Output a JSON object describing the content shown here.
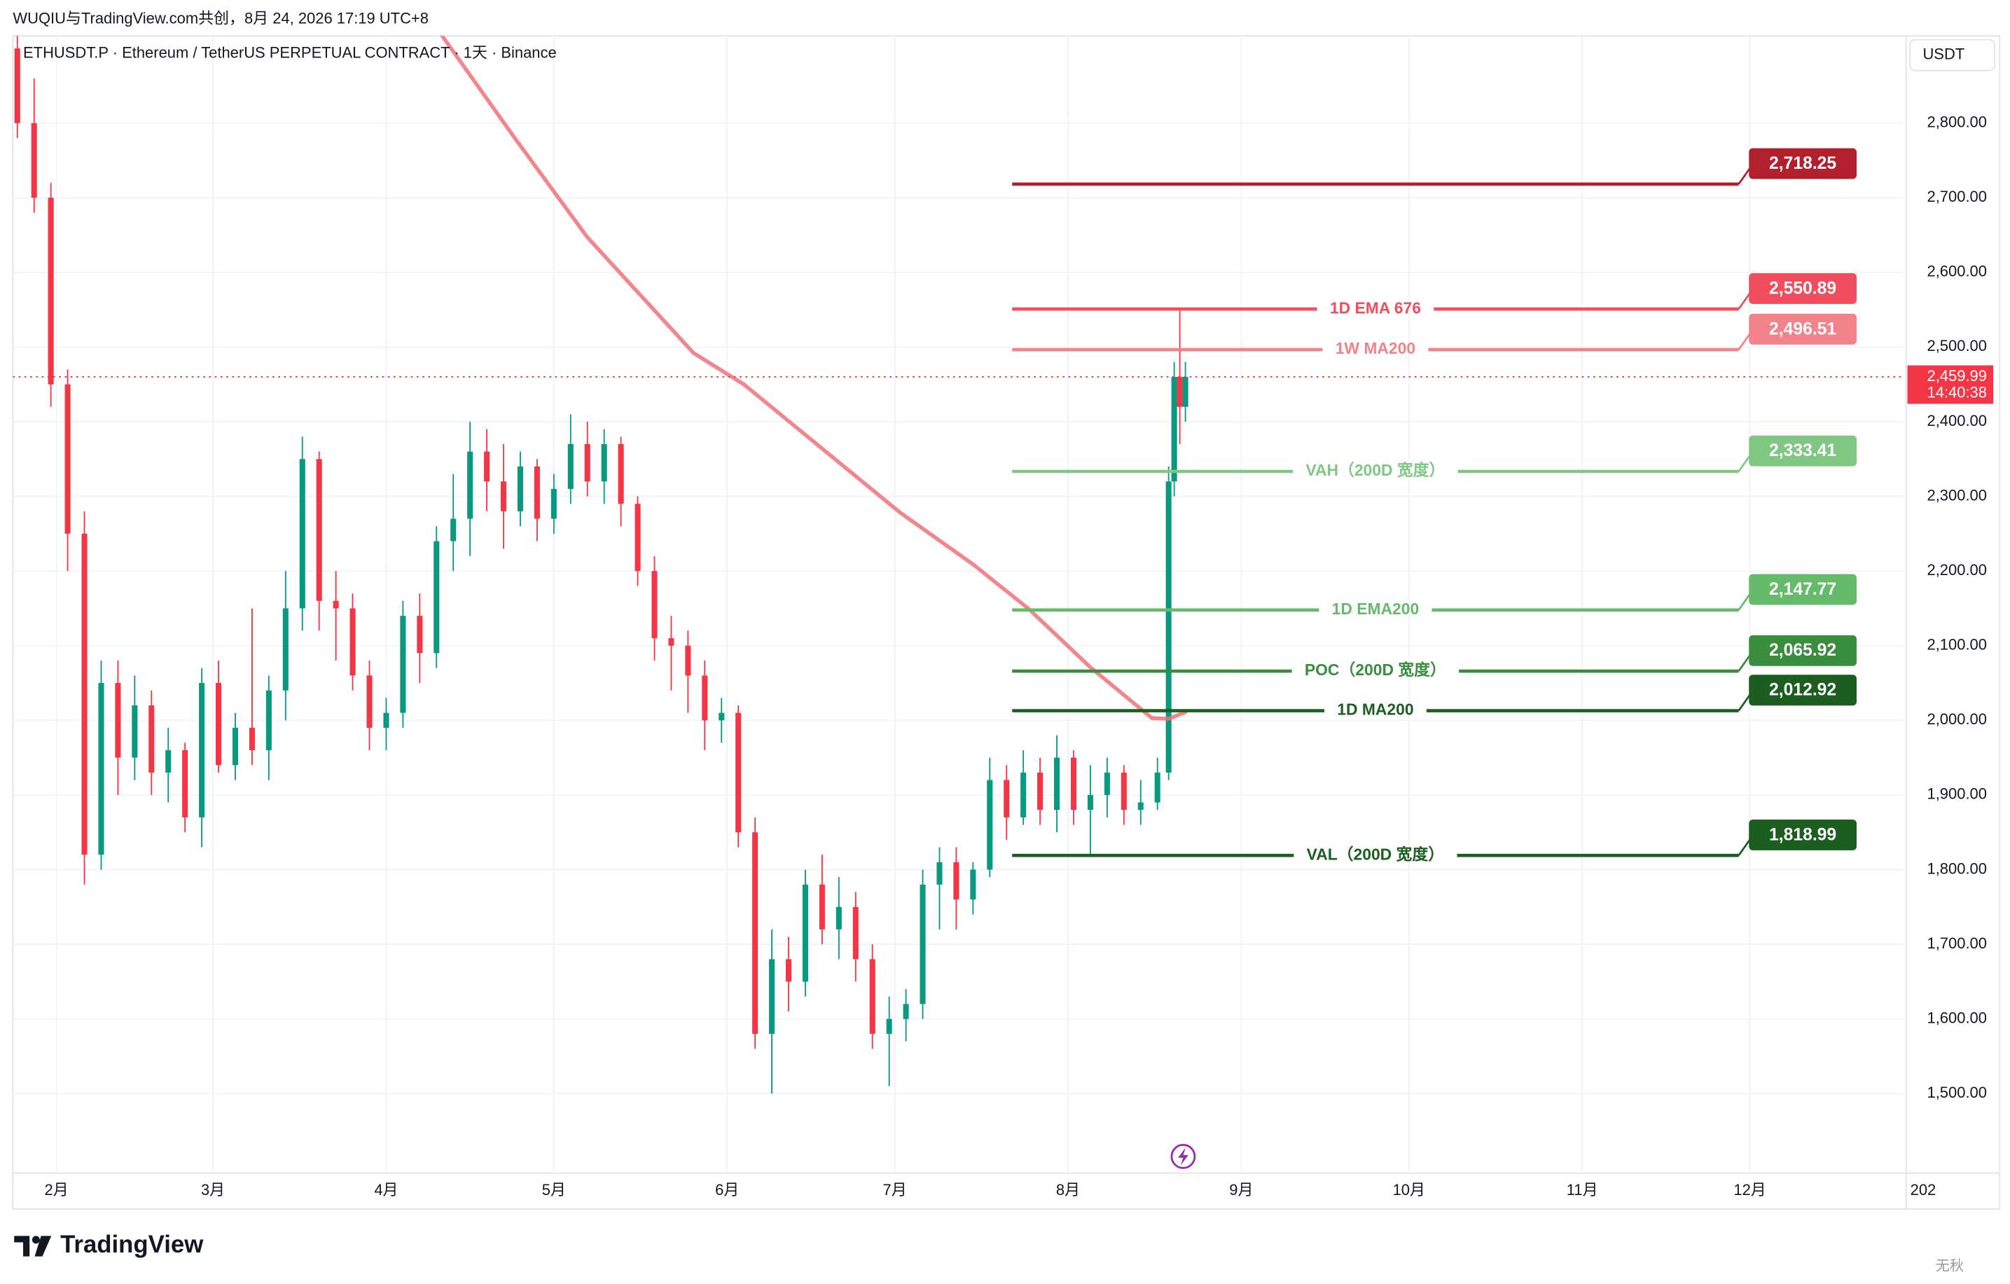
{
  "header": {
    "title": "WUQIU与TradingView.com共创，8月 24, 2026 17:19 UTC+8"
  },
  "chart_data": {
    "type": "candlestick",
    "title": "ETHUSDT.P · Ethereum / TetherUS PERPETUAL CONTRACT · 1天 · Binance",
    "unit": "USDT",
    "x": [
      -7,
      -4,
      -1,
      2,
      5,
      8,
      11,
      14,
      17,
      20,
      23,
      26,
      29,
      32,
      35,
      38,
      41,
      44,
      47,
      50,
      53,
      56,
      59,
      62,
      65,
      68,
      71,
      74,
      77,
      80,
      83,
      86,
      89,
      92,
      95,
      98,
      101,
      104,
      107,
      110,
      113,
      116,
      119,
      122,
      125,
      128,
      131,
      134,
      137,
      140,
      143,
      146,
      149,
      152,
      155,
      158,
      161,
      164,
      167,
      170,
      173,
      176,
      179,
      182,
      185,
      188,
      191,
      194,
      197,
      199,
      200,
      201,
      202
    ],
    "open": [
      2900,
      2800,
      2700,
      2450,
      2250,
      1820,
      2050,
      1950,
      2020,
      1930,
      1960,
      1870,
      2050,
      1940,
      1990,
      1960,
      2040,
      2150,
      2350,
      2160,
      2150,
      2060,
      1990,
      2010,
      2140,
      2090,
      2240,
      2270,
      2360,
      2320,
      2280,
      2340,
      2270,
      2310,
      2370,
      2320,
      2370,
      2290,
      2200,
      2110,
      2100,
      2060,
      2000,
      2010,
      1850,
      1580,
      1680,
      1650,
      1780,
      1720,
      1750,
      1680,
      1580,
      1600,
      1620,
      1780,
      1810,
      1760,
      1800,
      1920,
      1870,
      1930,
      1880,
      1950,
      1880,
      1900,
      1930,
      1880,
      1890,
      1930,
      2320,
      2460,
      2420
    ],
    "high": [
      2940,
      2860,
      2720,
      2470,
      2280,
      2080,
      2080,
      2060,
      2040,
      1990,
      1970,
      2070,
      2080,
      2010,
      2150,
      2060,
      2200,
      2380,
      2360,
      2200,
      2170,
      2080,
      2030,
      2160,
      2170,
      2260,
      2330,
      2400,
      2390,
      2370,
      2360,
      2350,
      2330,
      2410,
      2400,
      2390,
      2380,
      2300,
      2220,
      2140,
      2120,
      2080,
      2030,
      2020,
      1870,
      1720,
      1710,
      1800,
      1820,
      1790,
      1770,
      1700,
      1630,
      1640,
      1800,
      1830,
      1830,
      1810,
      1950,
      1940,
      1960,
      1950,
      1980,
      1960,
      1940,
      1950,
      1940,
      1920,
      1950,
      2340,
      2480,
      2550,
      2480
    ],
    "low": [
      2780,
      2680,
      2420,
      2200,
      1780,
      1800,
      1900,
      1920,
      1900,
      1890,
      1850,
      1830,
      1930,
      1920,
      1940,
      1920,
      2000,
      2120,
      2120,
      2080,
      2040,
      1960,
      1960,
      1990,
      2050,
      2070,
      2200,
      2220,
      2280,
      2230,
      2260,
      2240,
      2250,
      2290,
      2300,
      2290,
      2260,
      2180,
      2080,
      2040,
      2010,
      1960,
      1970,
      1830,
      1560,
      1500,
      1610,
      1630,
      1700,
      1680,
      1650,
      1560,
      1510,
      1570,
      1600,
      1720,
      1720,
      1740,
      1790,
      1840,
      1860,
      1860,
      1850,
      1860,
      1820,
      1870,
      1860,
      1860,
      1880,
      1920,
      2300,
      2370,
      2400
    ],
    "close": [
      2800,
      2700,
      2450,
      2250,
      1820,
      2050,
      1950,
      2020,
      1930,
      1960,
      1870,
      2050,
      1940,
      1990,
      1960,
      2040,
      2150,
      2350,
      2160,
      2150,
      2060,
      1990,
      2010,
      2140,
      2090,
      2240,
      2270,
      2360,
      2320,
      2280,
      2340,
      2270,
      2310,
      2370,
      2320,
      2370,
      2290,
      2200,
      2110,
      2100,
      2060,
      2000,
      2010,
      1850,
      1580,
      1680,
      1650,
      1780,
      1720,
      1750,
      1680,
      1580,
      1600,
      1620,
      1780,
      1810,
      1760,
      1800,
      1920,
      1870,
      1930,
      1880,
      1950,
      1880,
      1900,
      1930,
      1880,
      1890,
      1930,
      2320,
      2460,
      2420,
      2459.99
    ],
    "up_color": "#089981",
    "down_color": "#f23645",
    "ma": {
      "color": "#f07178",
      "x": [
        69,
        82,
        95,
        114,
        123,
        137,
        151,
        164,
        174,
        185,
        196,
        199,
        202
      ],
      "values": [
        2917,
        2780,
        2647,
        2492,
        2450,
        2364,
        2278,
        2209,
        2149,
        2071,
        2003,
        2002,
        2011
      ]
    },
    "levels": [
      {
        "value": 2718.25,
        "label": "2,718.25",
        "color": "#b2202e"
      },
      {
        "name": "1D EMA 676",
        "value": 2550.89,
        "label": "2,550.89",
        "color": "#f04e5e"
      },
      {
        "name": "1W MA200",
        "value": 2496.51,
        "label": "2,496.51",
        "color": "#f3838a"
      },
      {
        "name": "VAH（200D 宽度）",
        "value": 2333.41,
        "label": "2,333.41",
        "color": "#81c784"
      },
      {
        "name": "1D EMA200",
        "value": 2147.77,
        "label": "2,147.77",
        "color": "#66bb6a"
      },
      {
        "name": "POC（200D 宽度）",
        "value": 2065.92,
        "label": "2,065.92",
        "color": "#388e3c"
      },
      {
        "name": "1D MA200",
        "value": 2012.92,
        "label": "2,012.92",
        "color": "#1b5e20"
      },
      {
        "name": "VAL（200D 宽度）",
        "value": 1818.99,
        "label": "1,818.99",
        "color": "#1b5e20"
      }
    ],
    "last": {
      "value": 2459.99,
      "label": "2,459.99",
      "countdown": "14:40:38",
      "color": "#f23645"
    },
    "xlim": [
      -7.8,
      330.5
    ],
    "ylim": [
      1393.5,
      2916.8
    ],
    "xticks": [
      {
        "value": 0,
        "label": "2月"
      },
      {
        "value": 28,
        "label": "3月"
      },
      {
        "value": 59,
        "label": "4月"
      },
      {
        "value": 89,
        "label": "5月"
      },
      {
        "value": 120,
        "label": "6月"
      },
      {
        "value": 150,
        "label": "7月"
      },
      {
        "value": 181,
        "label": "8月"
      },
      {
        "value": 212,
        "label": "9月"
      },
      {
        "value": 242,
        "label": "10月"
      },
      {
        "value": 273,
        "label": "11月"
      },
      {
        "value": 303,
        "label": "12月"
      },
      {
        "value": 334,
        "label": "202"
      }
    ],
    "yticks": [
      {
        "value": 1500,
        "label": "1,500.00"
      },
      {
        "value": 1600,
        "label": "1,600.00"
      },
      {
        "value": 1700,
        "label": "1,700.00"
      },
      {
        "value": 1800,
        "label": "1,800.00"
      },
      {
        "value": 1900,
        "label": "1,900.00"
      },
      {
        "value": 2000,
        "label": "2,000.00"
      },
      {
        "value": 2100,
        "label": "2,100.00"
      },
      {
        "value": 2200,
        "label": "2,200.00"
      },
      {
        "value": 2300,
        "label": "2,300.00"
      },
      {
        "value": 2400,
        "label": "2,400.00"
      },
      {
        "value": 2500,
        "label": "2,500.00"
      },
      {
        "value": 2600,
        "label": "2,600.00"
      },
      {
        "value": 2700,
        "label": "2,700.00"
      },
      {
        "value": 2800,
        "label": "2,800.00"
      }
    ],
    "grid": true
  },
  "footer": {
    "brand": "TradingView",
    "watermark": "无秋"
  }
}
